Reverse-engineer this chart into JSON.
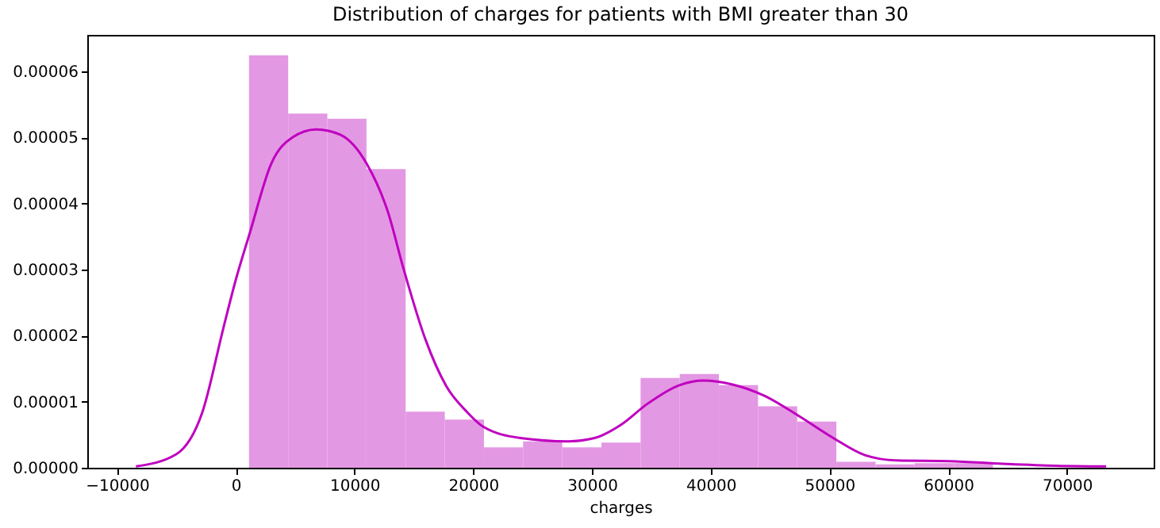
{
  "chart_data": {
    "type": "histogram",
    "title": "Distribution of charges for patients with BMI greater than 30",
    "xlabel": "charges",
    "xlim": [
      -12500,
      77300
    ],
    "xticks": [
      -10000,
      0,
      10000,
      20000,
      30000,
      40000,
      50000,
      60000,
      70000
    ],
    "ylim": [
      0,
      6.55e-05
    ],
    "yticks": [
      {
        "value": 0,
        "label": "0.00000"
      },
      {
        "value": 1e-05,
        "label": "0.00001"
      },
      {
        "value": 2e-05,
        "label": "0.00002"
      },
      {
        "value": 3e-05,
        "label": "0.00003"
      },
      {
        "value": 4e-05,
        "label": "0.00004"
      },
      {
        "value": 5e-05,
        "label": "0.00005"
      },
      {
        "value": 6e-05,
        "label": "0.00006"
      }
    ],
    "grid": false,
    "series": [
      {
        "color": "#e398e3",
        "bins": [
          1121,
          4418,
          7716,
          11013,
          14310,
          17608,
          20905,
          24202,
          27500,
          30797,
          34094,
          37392,
          40689,
          43986,
          47284,
          50581,
          53878,
          57176,
          60473,
          63770
        ],
        "values": [
          6.24e-05,
          5.36e-05,
          5.28e-05,
          4.52e-05,
          8.5e-06,
          7.3e-06,
          3.1e-06,
          4e-06,
          3.1e-06,
          3.8e-06,
          1.36e-05,
          1.42e-05,
          1.25e-05,
          9.3e-06,
          7e-06,
          9e-07,
          5e-07,
          7e-07,
          7e-07
        ]
      },
      {
        "type": "line",
        "color": "#bf00bf",
        "x": [
          -8400,
          -5040,
          -2810,
          -1030,
          0,
          1200,
          2990,
          4780,
          6790,
          8800,
          11030,
          12800,
          14150,
          15940,
          17720,
          19500,
          20850,
          23970,
          27990,
          30220,
          32450,
          34690,
          37370,
          39380,
          41830,
          44510,
          47190,
          50320,
          52990,
          55670,
          60130,
          64600,
          69060,
          73300
        ],
        "values": [
          2e-07,
          2e-06,
          8.4e-06,
          2.12e-05,
          2.84e-05,
          3.56e-05,
          4.6e-05,
          5e-05,
          5.12e-05,
          5.04e-05,
          4.6e-05,
          3.88e-05,
          3e-05,
          1.96e-05,
          1.24e-05,
          8.4e-06,
          6.2e-06,
          4.5e-06,
          4e-06,
          4.5e-06,
          6.5e-06,
          9.7e-06,
          1.25e-05,
          1.32e-05,
          1.26e-05,
          1.09e-05,
          8.1e-06,
          4.5e-06,
          1.9e-06,
          1.1e-06,
          1e-06,
          6e-07,
          3e-07,
          2e-07
        ]
      }
    ]
  }
}
